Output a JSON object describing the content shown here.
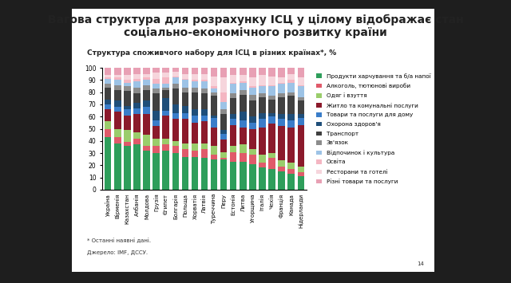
{
  "chart_data": {
    "type": "bar",
    "stacked": true,
    "orientation": "vertical",
    "title": "Вагова структура для розрахунку ІСЦ у цілому відображає стан соціально-економічного розвитку країни",
    "subtitle": "Структура споживчого набору для ІСЦ в різних країнах*, %",
    "annotations": [
      "* Останні наявні дані.",
      "Джерело: IMF, ДССУ.",
      "14"
    ],
    "categories": [
      "Україна",
      "Вірменія",
      "Казахстан",
      "Албанія",
      "Молдова",
      "Грузія",
      "Єгипет",
      "Болгарія",
      "Польща",
      "Хорватія",
      "Латвія",
      "Туреччина",
      "Перу",
      "Естонія",
      "Литва",
      "Угорщина",
      "Італія",
      "Чехія",
      "Франція",
      "Канада",
      "Нідерланди"
    ],
    "series": [
      {
        "name": "Продукти харчування та б/а напої",
        "color": "#2e9e5b",
        "values": [
          43,
          38,
          36,
          37,
          32,
          30,
          32,
          30,
          27,
          27,
          26,
          25,
          25,
          23,
          23,
          21,
          18,
          17,
          15,
          13,
          11
        ]
      },
      {
        "name": "Алкоголь, тютюнові вироби",
        "color": "#e05a6a",
        "values": [
          7,
          5,
          3,
          5,
          4,
          6,
          5,
          6,
          6,
          5,
          7,
          4,
          1,
          8,
          7,
          8,
          4,
          9,
          4,
          4,
          3
        ]
      },
      {
        "name": "Одяг і взуття",
        "color": "#9acd6b",
        "values": [
          6,
          7,
          10,
          5,
          9,
          6,
          5,
          4,
          5,
          6,
          5,
          7,
          5,
          5,
          7,
          4,
          7,
          4,
          5,
          5,
          5
        ]
      },
      {
        "name": "Житло та комунальні послуги",
        "color": "#8b1a2b",
        "values": [
          10,
          14,
          12,
          15,
          17,
          10,
          19,
          18,
          20,
          17,
          18,
          15,
          10,
          17,
          14,
          17,
          22,
          24,
          28,
          29,
          34
        ]
      },
      {
        "name": "Товари та послуги для дому",
        "color": "#3a7dc9",
        "values": [
          4,
          4,
          5,
          5,
          6,
          5,
          4,
          5,
          5,
          6,
          5,
          8,
          5,
          5,
          6,
          5,
          7,
          6,
          6,
          6,
          6
        ]
      },
      {
        "name": "Охорона здоров'я",
        "color": "#1f4e79",
        "values": [
          4,
          5,
          3,
          4,
          5,
          8,
          10,
          7,
          6,
          5,
          5,
          2,
          3,
          4,
          7,
          5,
          5,
          3,
          4,
          5,
          3
        ]
      },
      {
        "name": "Транспорт",
        "color": "#404040",
        "values": [
          10,
          9,
          12,
          8,
          9,
          14,
          7,
          13,
          11,
          14,
          13,
          16,
          13,
          13,
          14,
          13,
          13,
          11,
          14,
          15,
          11
        ]
      },
      {
        "name": "Зв'язок",
        "color": "#8c8c8c",
        "values": [
          3,
          4,
          4,
          5,
          4,
          4,
          2,
          4,
          4,
          4,
          4,
          3,
          4,
          4,
          4,
          5,
          3,
          3,
          3,
          3,
          3
        ]
      },
      {
        "name": "Відпочинок і культура",
        "color": "#9dc3e6",
        "values": [
          4,
          4,
          3,
          5,
          4,
          4,
          3,
          5,
          6,
          5,
          6,
          3,
          6,
          8,
          6,
          6,
          6,
          8,
          8,
          8,
          9
        ]
      },
      {
        "name": "Освіта",
        "color": "#f4b6c2",
        "values": [
          1,
          2,
          2,
          2,
          2,
          4,
          5,
          1,
          1,
          1,
          1,
          2,
          8,
          1,
          1,
          1,
          1,
          1,
          1,
          2,
          1
        ]
      },
      {
        "name": "Ресторани та готелі",
        "color": "#f6d5dc",
        "values": [
          2,
          2,
          4,
          4,
          3,
          5,
          4,
          4,
          4,
          5,
          5,
          8,
          12,
          6,
          5,
          7,
          8,
          7,
          4,
          5,
          6
        ]
      },
      {
        "name": "Різні товари та послуги",
        "color": "#e8a0b4",
        "values": [
          6,
          6,
          6,
          5,
          5,
          4,
          4,
          3,
          5,
          5,
          5,
          7,
          8,
          6,
          6,
          8,
          6,
          7,
          8,
          5,
          8
        ]
      }
    ],
    "ylim": [
      0,
      100
    ],
    "yticks": [
      0,
      10,
      20,
      30,
      40,
      50,
      60,
      70,
      80,
      90,
      100
    ],
    "grid": false,
    "legend": "right"
  }
}
